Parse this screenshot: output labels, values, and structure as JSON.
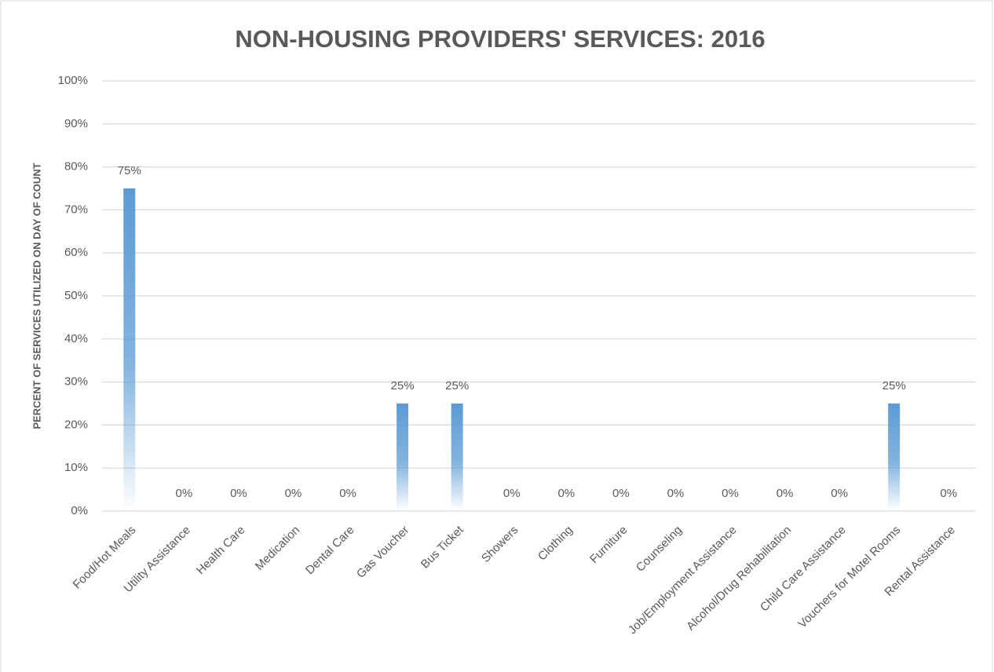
{
  "chart_data": {
    "type": "bar",
    "title": "NON-HOUSING PROVIDERS' SERVICES: 2016",
    "y_label": "PERCENT OF SERVICES UTILIZED ON DAY OF COUNT",
    "categories": [
      "Food/Hot Meals",
      "Utility Assistance",
      "Health Care",
      "Medication",
      "Dental Care",
      "Gas Voucher",
      "Bus Ticket",
      "Showers",
      "Clothing",
      "Furniture",
      "Counseling",
      "Job/Employment Assistance",
      "Alcohol/Drug Rehabilitation",
      "Child Care Assistance",
      "Vouchers for Motel Rooms",
      "Rental Assistance"
    ],
    "values": [
      75,
      0,
      0,
      0,
      0,
      25,
      25,
      0,
      0,
      0,
      0,
      0,
      0,
      0,
      25,
      0
    ],
    "value_labels": [
      "75%",
      "0%",
      "0%",
      "0%",
      "0%",
      "25%",
      "25%",
      "0%",
      "0%",
      "0%",
      "0%",
      "0%",
      "0%",
      "0%",
      "25%",
      "0%"
    ],
    "color": "#5b9bd5",
    "ylim": [
      0,
      100
    ],
    "yticks": [
      {
        "value": 0,
        "label": "0%"
      },
      {
        "value": 10,
        "label": "10%"
      },
      {
        "value": 20,
        "label": "20%"
      },
      {
        "value": 30,
        "label": "30%"
      },
      {
        "value": 40,
        "label": "40%"
      },
      {
        "value": 50,
        "label": "50%"
      },
      {
        "value": 60,
        "label": "60%"
      },
      {
        "value": 70,
        "label": "70%"
      },
      {
        "value": 80,
        "label": "80%"
      },
      {
        "value": 90,
        "label": "90%"
      },
      {
        "value": 100,
        "label": "100%"
      }
    ],
    "grid": true
  }
}
